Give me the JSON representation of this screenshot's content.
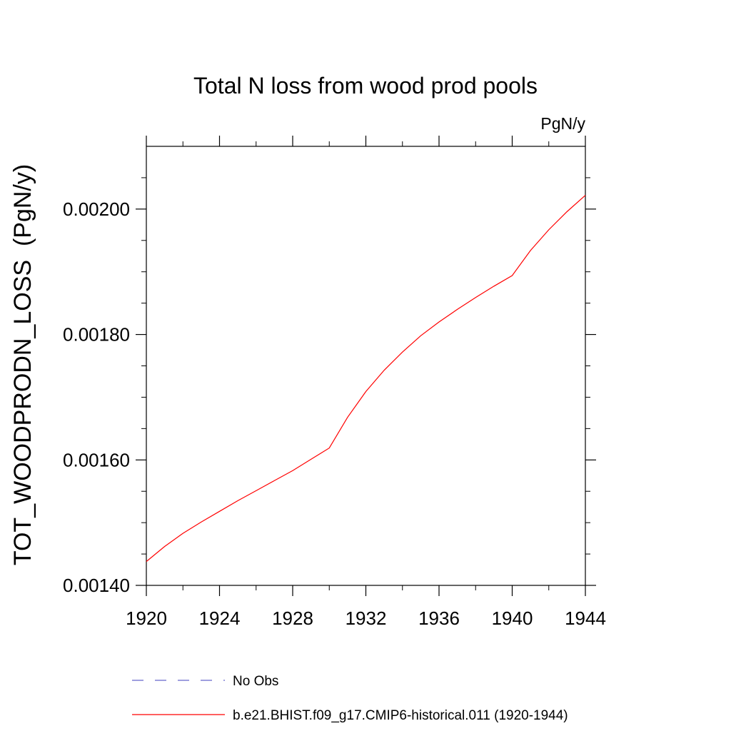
{
  "chart_data": {
    "type": "line",
    "title": "Total N loss from wood prod pools",
    "units_label": "PgN/y",
    "ylabel": "TOT_WOODPRODN_LOSS  (PgN/y)",
    "xlabel": "",
    "xlim": [
      1920,
      1944
    ],
    "ylim": [
      0.0014,
      0.0021
    ],
    "x_ticks": [
      1920,
      1924,
      1928,
      1932,
      1936,
      1940,
      1944
    ],
    "x_tick_labels": [
      "1920",
      "1924",
      "1928",
      "1932",
      "1936",
      "1940",
      "1944"
    ],
    "y_ticks": [
      0.0014,
      0.0016,
      0.0018,
      0.002
    ],
    "y_tick_labels": [
      "0.00140",
      "0.00160",
      "0.00180",
      "0.00200"
    ],
    "grid": false,
    "legend_position": "bottom",
    "series": [
      {
        "name": "b.e21.BHIST.f09_g17.CMIP6-historical.011 (1920-1944)",
        "color": "#ff0000",
        "x": [
          1920,
          1921,
          1922,
          1923,
          1924,
          1925,
          1926,
          1927,
          1928,
          1929,
          1930,
          1931,
          1932,
          1933,
          1934,
          1935,
          1936,
          1937,
          1938,
          1939,
          1940,
          1941,
          1942,
          1943,
          1944
        ],
        "y": [
          0.001438,
          0.001462,
          0.001483,
          0.001501,
          0.001518,
          0.001535,
          0.001551,
          0.001567,
          0.001583,
          0.001601,
          0.001619,
          0.001668,
          0.001709,
          0.001743,
          0.001772,
          0.001798,
          0.00182,
          0.00184,
          0.001859,
          0.001877,
          0.001894,
          0.001934,
          0.001967,
          0.001996,
          0.002022
        ]
      }
    ],
    "legend": [
      {
        "label": "No Obs",
        "color": "#6666cc",
        "style": "dashed"
      },
      {
        "label": "b.e21.BHIST.f09_g17.CMIP6-historical.011 (1920-1944)",
        "color": "#ff0000",
        "style": "solid"
      }
    ]
  }
}
